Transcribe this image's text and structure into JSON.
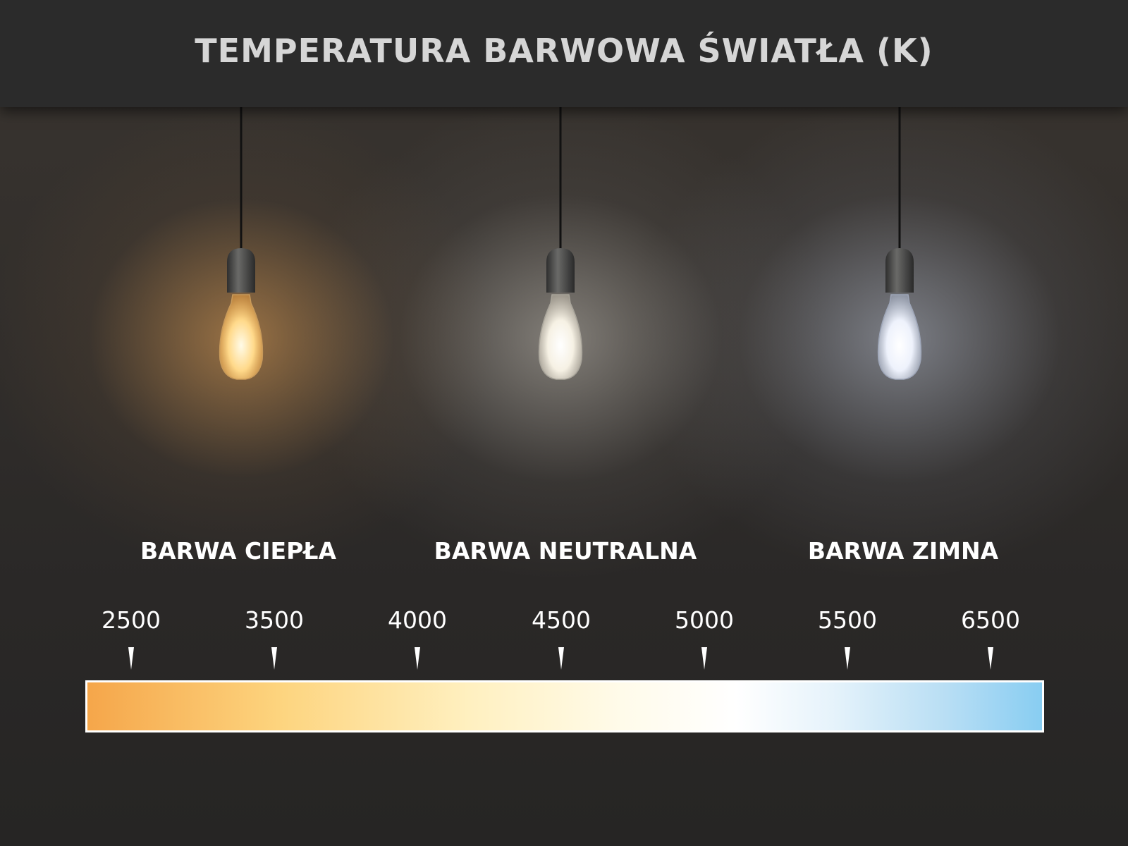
{
  "title": "TEMPERATURA BARWOWA ŚWIATŁA (K)",
  "categories": [
    {
      "label": "BARWA CIEPŁA",
      "glow_color": "#f5b060"
    },
    {
      "label": "BARWA NEUTRALNA",
      "glow_color": "#f3efe6"
    },
    {
      "label": "BARWA ZIMNA",
      "glow_color": "#e3ebfb"
    }
  ],
  "scale": {
    "values": [
      "2500",
      "3500",
      "4000",
      "4500",
      "5000",
      "5500",
      "6500"
    ],
    "gradient_colors": [
      "#f5a64a",
      "#fdd47e",
      "#fffbea",
      "#ffffff",
      "#88cdf2"
    ]
  }
}
